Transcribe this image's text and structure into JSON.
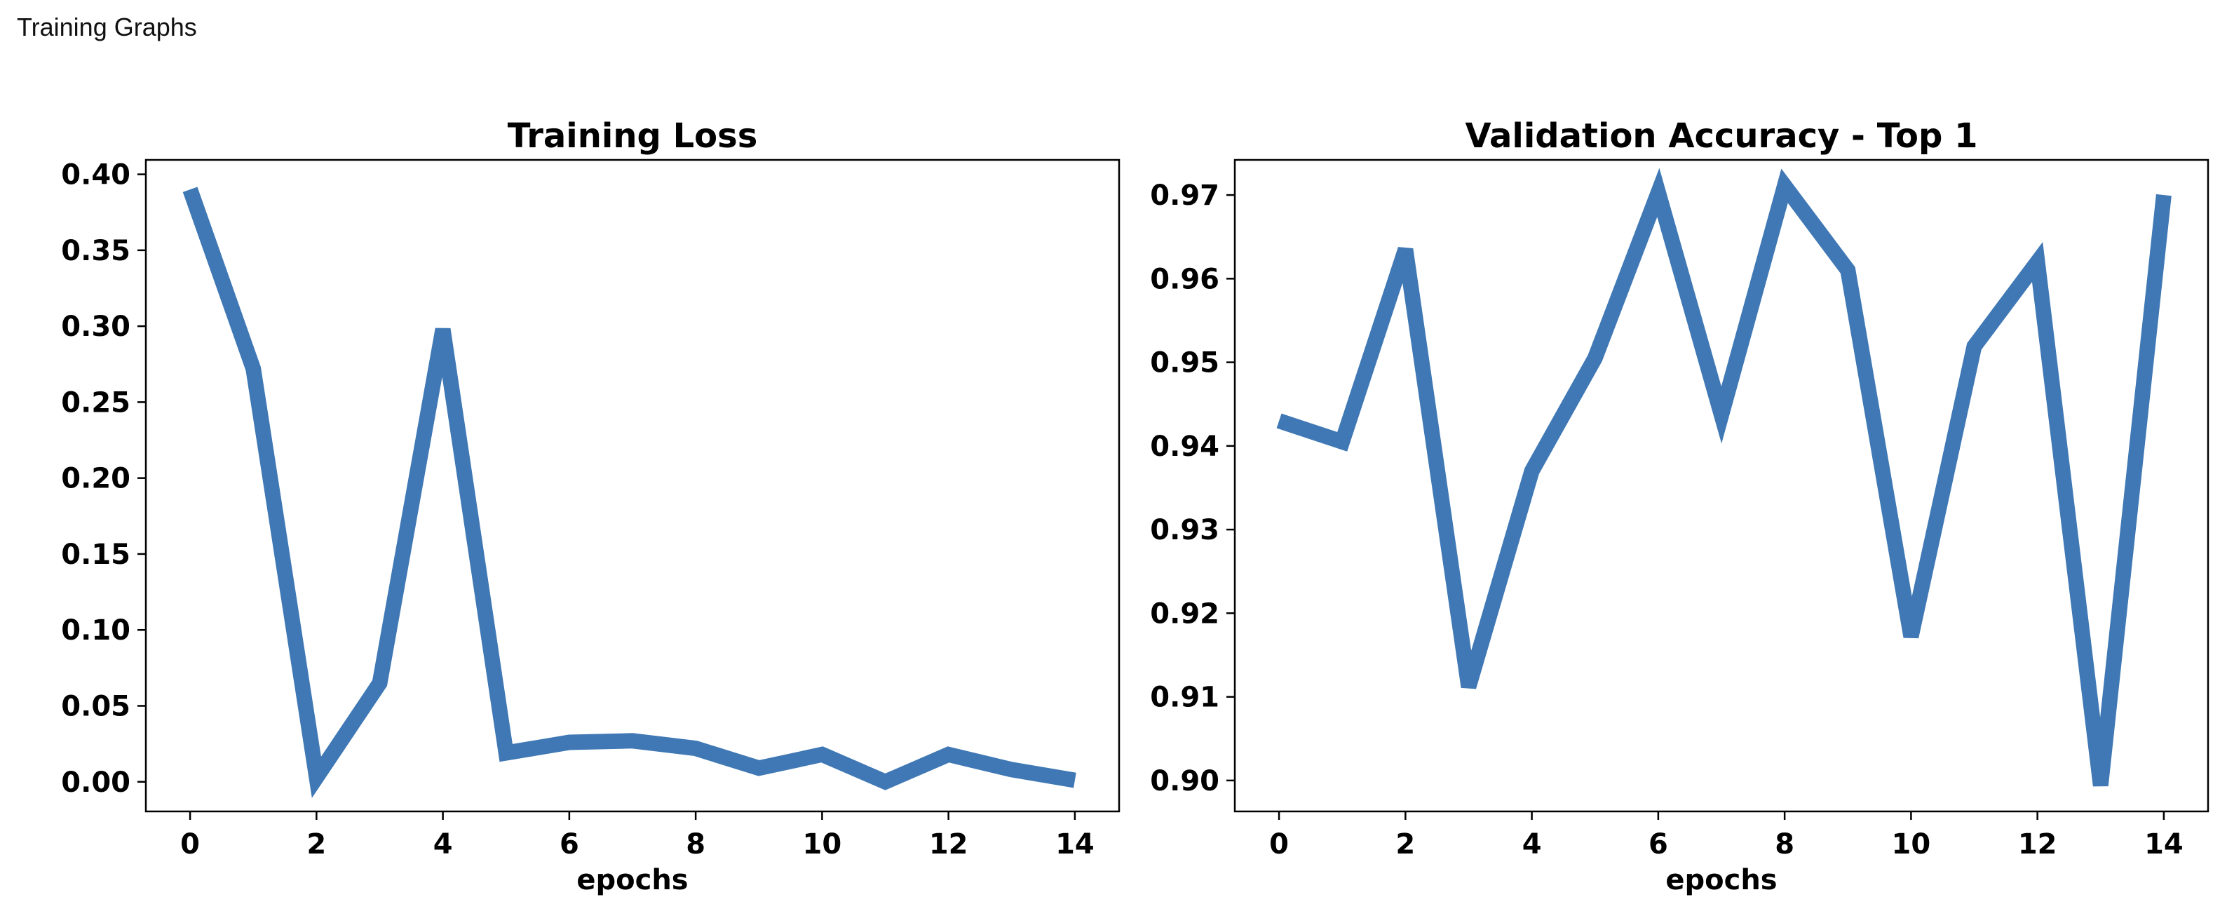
{
  "page": {
    "heading": "Training Graphs"
  },
  "colors": {
    "series": "#3f78b4"
  },
  "chart_data": [
    {
      "type": "line",
      "title": "Training Loss",
      "xlabel": "epochs",
      "ylabel": "",
      "x": [
        0,
        1,
        2,
        3,
        4,
        5,
        6,
        7,
        8,
        9,
        10,
        11,
        12,
        13,
        14
      ],
      "series": [
        {
          "values": [
            0.39,
            0.272,
            0.003,
            0.065,
            0.298,
            0.019,
            0.026,
            0.027,
            0.022,
            0.009,
            0.018,
            0.0,
            0.018,
            0.008,
            0.001
          ]
        }
      ],
      "xlim": [
        -0.7,
        14.7
      ],
      "ylim": [
        -0.0195,
        0.4095
      ],
      "xticks": [
        0,
        2,
        4,
        6,
        8,
        10,
        12,
        14
      ],
      "xtick_labels": [
        "0",
        "2",
        "4",
        "6",
        "8",
        "10",
        "12",
        "14"
      ],
      "yticks": [
        0.0,
        0.05,
        0.1,
        0.15,
        0.2,
        0.25,
        0.3,
        0.35,
        0.4
      ],
      "ytick_labels": [
        "0.00",
        "0.05",
        "0.10",
        "0.15",
        "0.20",
        "0.25",
        "0.30",
        "0.35",
        "0.40"
      ],
      "grid": false,
      "legend": false
    },
    {
      "type": "line",
      "title": "Validation Accuracy - Top 1",
      "xlabel": "epochs",
      "ylabel": "",
      "x": [
        0,
        1,
        2,
        3,
        4,
        5,
        6,
        7,
        8,
        9,
        10,
        11,
        12,
        13,
        14
      ],
      "series": [
        {
          "values": [
            0.943,
            0.9405,
            0.9635,
            0.9112,
            0.937,
            0.9505,
            0.9703,
            0.9437,
            0.9711,
            0.961,
            0.9172,
            0.9519,
            0.962,
            0.8994,
            0.97
          ]
        }
      ],
      "xlim": [
        -0.7,
        14.7
      ],
      "ylim": [
        0.8963,
        0.9742
      ],
      "xticks": [
        0,
        2,
        4,
        6,
        8,
        10,
        12,
        14
      ],
      "xtick_labels": [
        "0",
        "2",
        "4",
        "6",
        "8",
        "10",
        "12",
        "14"
      ],
      "yticks": [
        0.9,
        0.91,
        0.92,
        0.93,
        0.94,
        0.95,
        0.96,
        0.97
      ],
      "ytick_labels": [
        "0.90",
        "0.91",
        "0.92",
        "0.93",
        "0.94",
        "0.95",
        "0.96",
        "0.97"
      ],
      "grid": false,
      "legend": false
    }
  ]
}
